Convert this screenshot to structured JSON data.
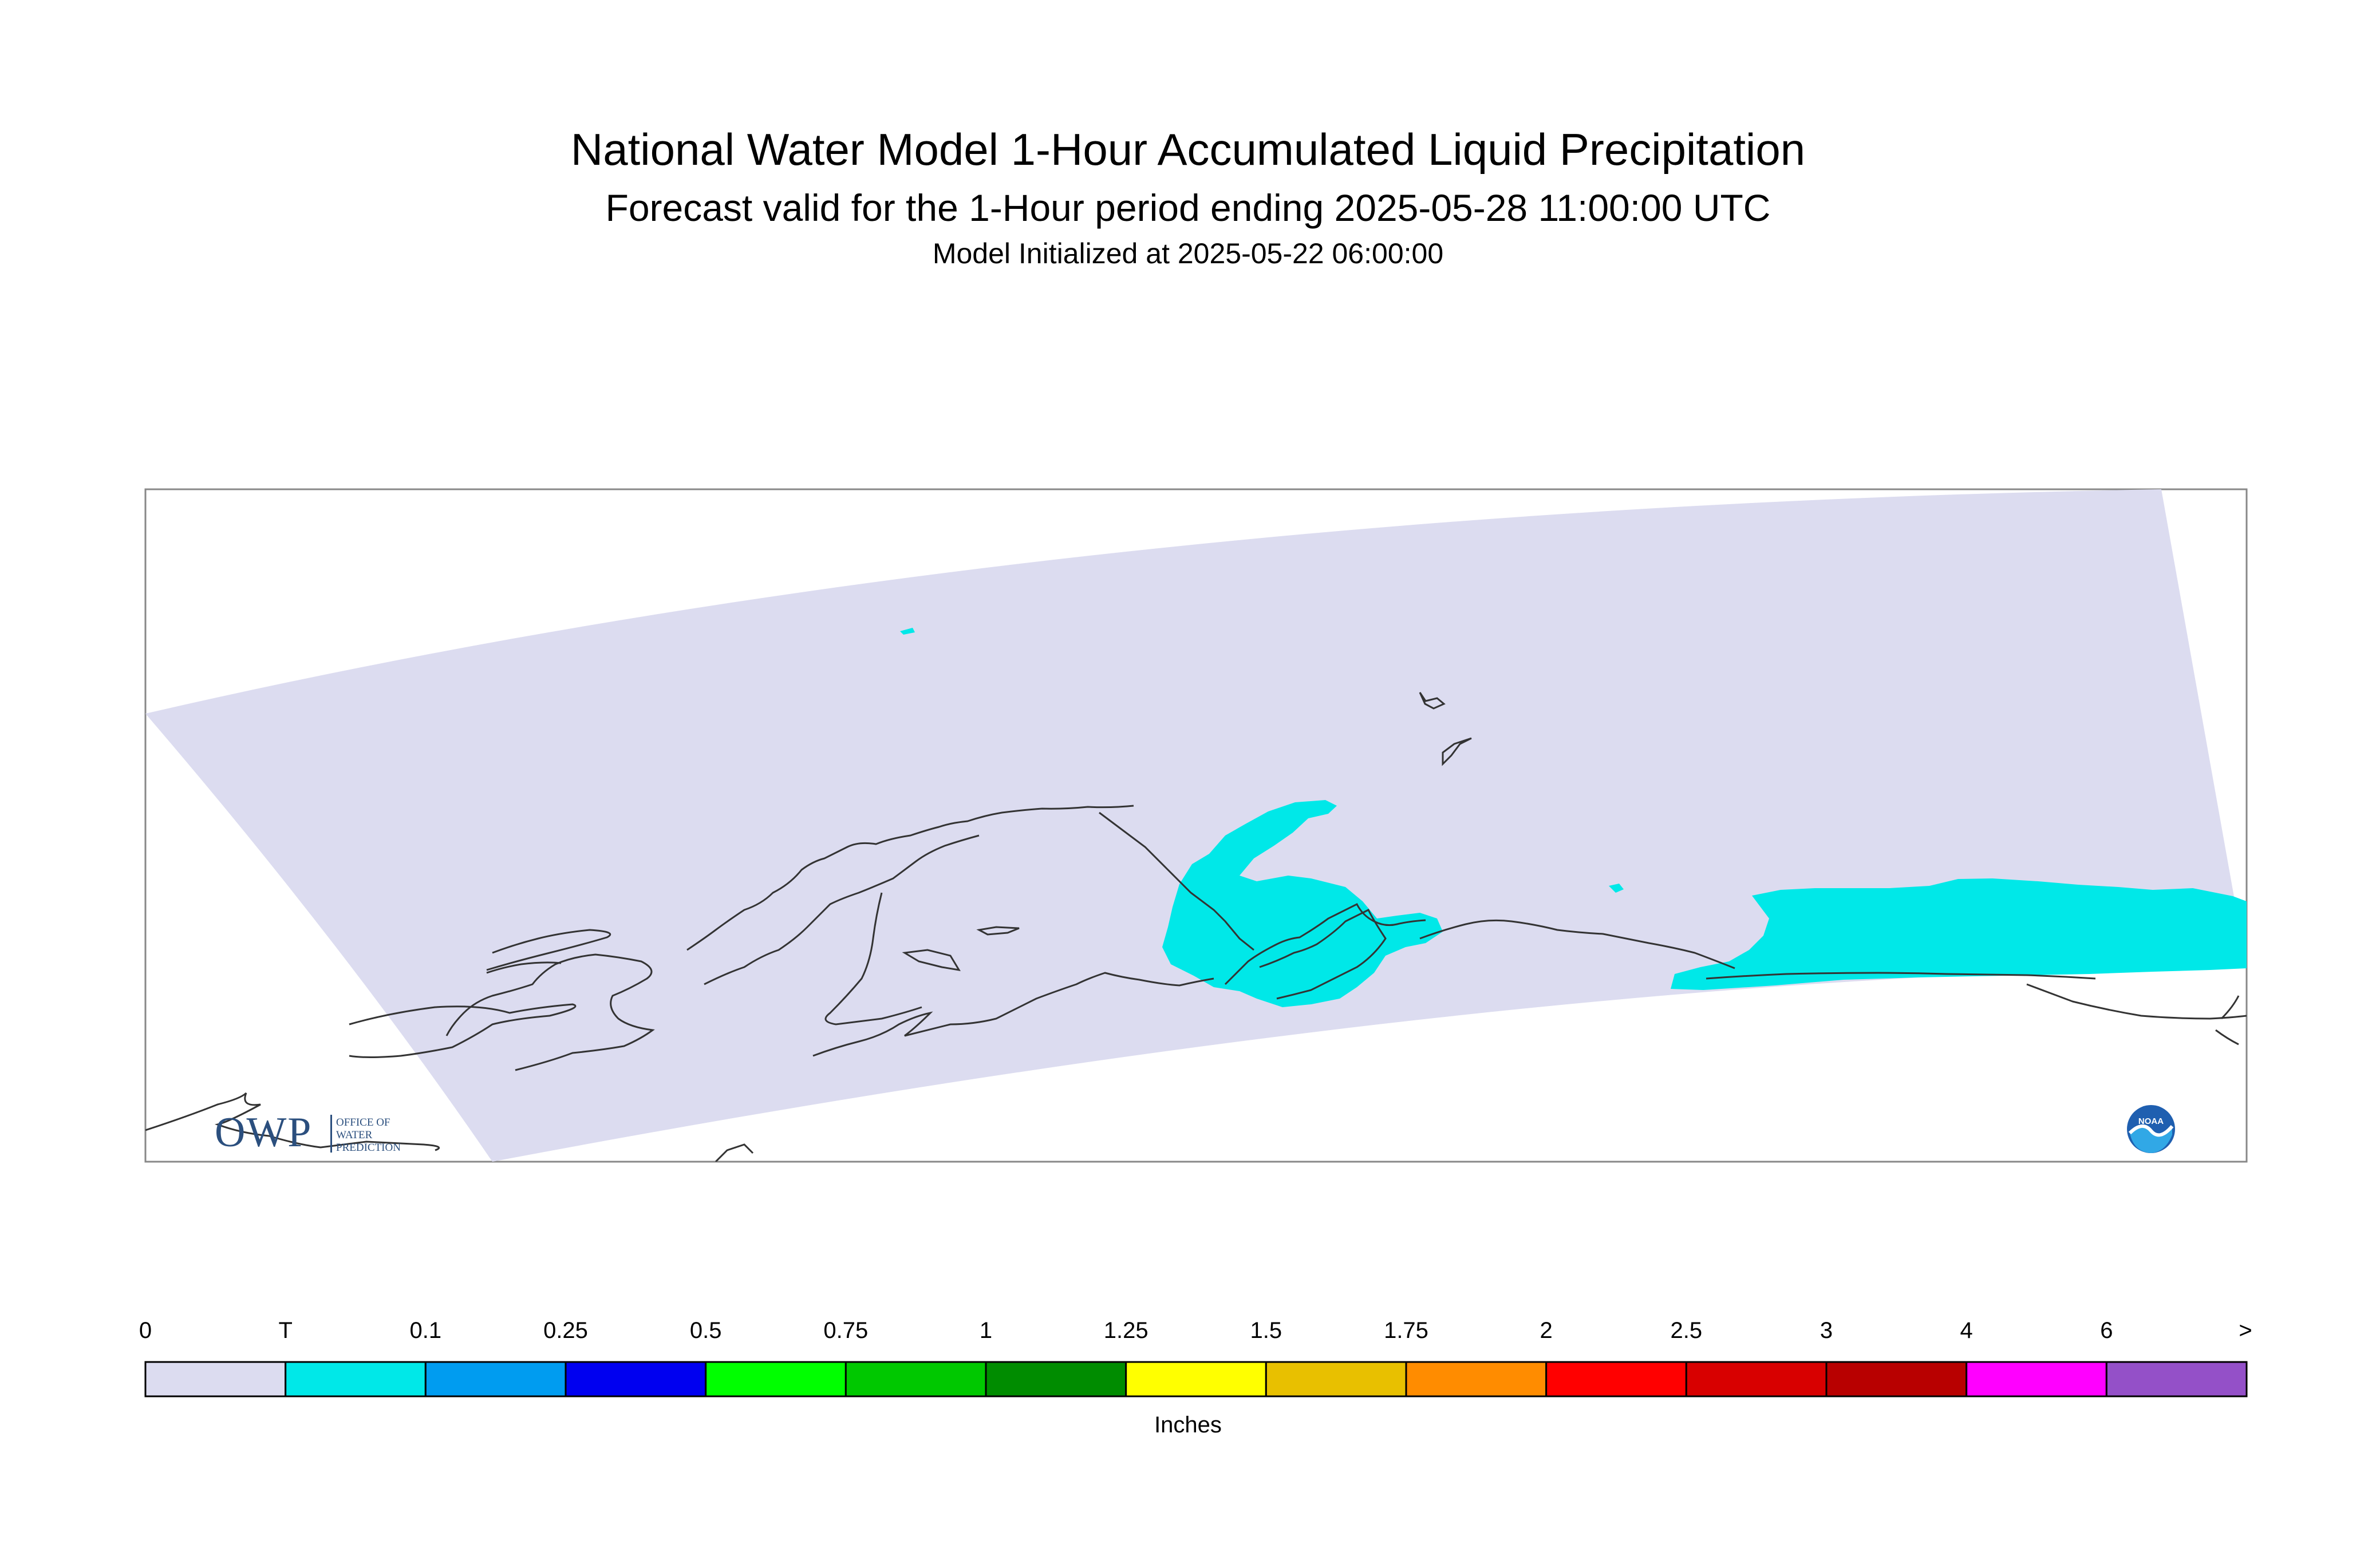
{
  "title": "National Water Model 1-Hour Accumulated Liquid Precipitation",
  "subtitle": "Forecast valid for the 1-Hour period ending 2025-05-28 11:00:00 UTC",
  "initialized": "Model Initialized at 2025-05-22 06:00:00",
  "logo": {
    "letters": "OWP",
    "line1": "OFFICE OF",
    "line2": "WATER",
    "line3": "PREDICTION"
  },
  "noaa_logo_text": "NOAA",
  "legend": {
    "unit": "Inches",
    "labels": [
      "0",
      "T",
      "0.1",
      "0.25",
      "0.5",
      "0.75",
      "1",
      "1.25",
      "1.5",
      "1.75",
      "2",
      "2.5",
      "3",
      "4",
      "6",
      ">"
    ],
    "colors": [
      "#dcdcf0",
      "#00e8e8",
      "#009cf0",
      "#0000f0",
      "#00ff00",
      "#00c800",
      "#008c00",
      "#ffff00",
      "#e8c000",
      "#ff8c00",
      "#ff0000",
      "#d80000",
      "#b80000",
      "#ff00ff",
      "#9450c8"
    ]
  },
  "colors": {
    "domain": "#dcdcf0",
    "trace": "#00e8e8",
    "coast": "#333333",
    "frame": "#888888"
  }
}
